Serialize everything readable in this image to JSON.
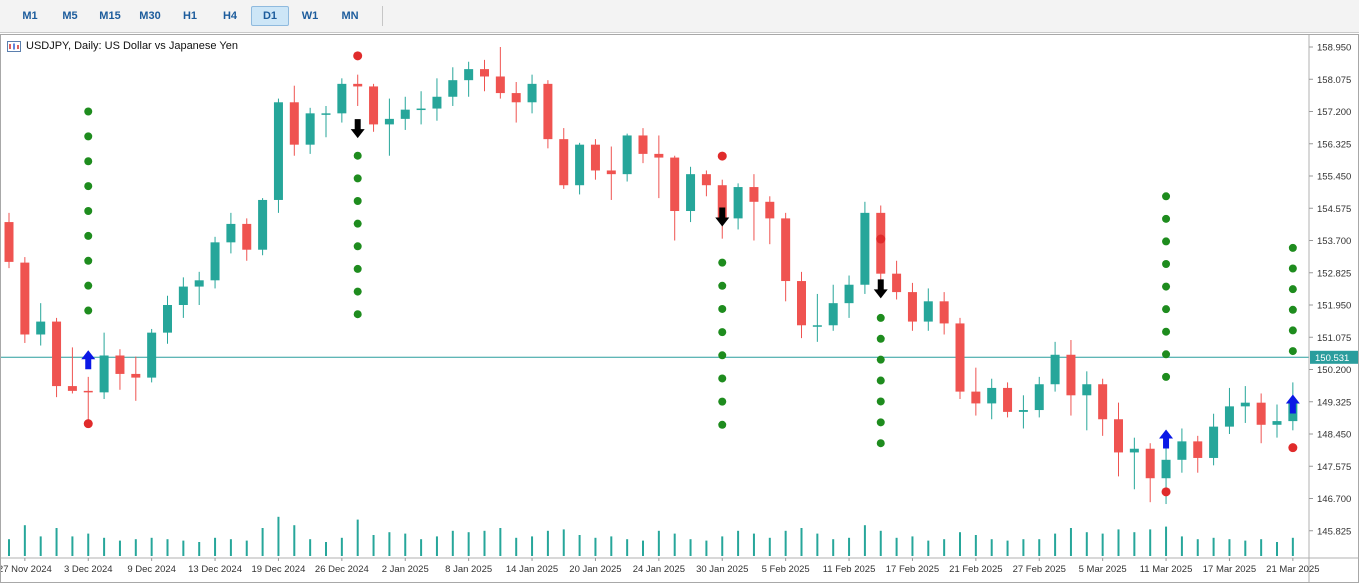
{
  "toolbar": {
    "timeframes": [
      "M1",
      "M5",
      "M15",
      "M30",
      "H1",
      "H4",
      "D1",
      "W1",
      "MN"
    ],
    "selected": "D1"
  },
  "header": {
    "title": "USDJPY, Daily:  US Dollar vs Japanese Yen"
  },
  "colors": {
    "bull": "#26a69a",
    "bear": "#ef5350",
    "volume": "#26a69a",
    "price_line": "#2a9d9d",
    "price_label_bg": "#2a9d9d",
    "green_dot": "#1e8c1e",
    "red_dot": "#e02b2b",
    "up_arrow": "#0a18e6",
    "down_arrow": "#000000",
    "toolbar_text": "#1c5c9c",
    "selected_timeframe_bg": "#cde6f7",
    "selected_timeframe_border": "#8fbade",
    "axis_text": "#333333"
  },
  "chart_data": {
    "type": "candlestick",
    "symbol": "USDJPY",
    "period": "Daily",
    "description": "US Dollar vs Japanese Yen",
    "price_line": {
      "price": 150.531,
      "label": "150.531"
    },
    "y_axis": {
      "top": 158.95,
      "step": 0.875,
      "labels": [
        "158.950",
        "158.075",
        "157.200",
        "156.325",
        "155.450",
        "154.575",
        "153.700",
        "152.825",
        "151.950",
        "151.075",
        "150.200",
        "149.325",
        "148.450",
        "147.575",
        "146.700",
        "145.825"
      ]
    },
    "x_axis": {
      "labels": [
        {
          "text": "27 Nov 2024",
          "index": 1
        },
        {
          "text": "3 Dec 2024",
          "index": 5
        },
        {
          "text": "9 Dec 2024",
          "index": 9
        },
        {
          "text": "13 Dec 2024",
          "index": 13
        },
        {
          "text": "19 Dec 2024",
          "index": 17
        },
        {
          "text": "26 Dec 2024",
          "index": 21
        },
        {
          "text": "2 Jan 2025",
          "index": 25
        },
        {
          "text": "8 Jan 2025",
          "index": 29
        },
        {
          "text": "14 Jan 2025",
          "index": 33
        },
        {
          "text": "20 Jan 2025",
          "index": 37
        },
        {
          "text": "24 Jan 2025",
          "index": 41
        },
        {
          "text": "30 Jan 2025",
          "index": 45
        },
        {
          "text": "5 Feb 2025",
          "index": 49
        },
        {
          "text": "11 Feb 2025",
          "index": 53
        },
        {
          "text": "17 Feb 2025",
          "index": 57
        },
        {
          "text": "21 Feb 2025",
          "index": 61
        },
        {
          "text": "27 Feb 2025",
          "index": 65
        },
        {
          "text": "5 Mar 2025",
          "index": 69
        },
        {
          "text": "11 Mar 2025",
          "index": 73
        },
        {
          "text": "17 Mar 2025",
          "index": 77
        },
        {
          "text": "21 Mar 2025",
          "index": 81
        }
      ]
    },
    "candles": [
      [
        154.2,
        154.45,
        152.95,
        153.12,
        12
      ],
      [
        153.1,
        153.25,
        150.92,
        151.15,
        22
      ],
      [
        151.15,
        152.0,
        150.85,
        151.5,
        14
      ],
      [
        151.5,
        151.6,
        149.45,
        149.75,
        20
      ],
      [
        149.75,
        150.8,
        149.55,
        149.62,
        14
      ],
      [
        149.62,
        150.0,
        148.65,
        149.58,
        16
      ],
      [
        149.58,
        151.2,
        149.4,
        150.58,
        13
      ],
      [
        150.58,
        150.75,
        149.65,
        150.08,
        11
      ],
      [
        150.08,
        150.55,
        149.35,
        149.98,
        12
      ],
      [
        149.98,
        151.3,
        149.85,
        151.2,
        13
      ],
      [
        151.2,
        152.2,
        150.9,
        151.95,
        12
      ],
      [
        151.95,
        152.7,
        151.6,
        152.45,
        11
      ],
      [
        152.45,
        152.85,
        151.95,
        152.62,
        10
      ],
      [
        152.62,
        153.8,
        152.4,
        153.65,
        13
      ],
      [
        153.65,
        154.45,
        153.35,
        154.15,
        12
      ],
      [
        154.15,
        154.3,
        153.15,
        153.45,
        11
      ],
      [
        153.45,
        154.85,
        153.3,
        154.8,
        20
      ],
      [
        154.8,
        157.55,
        154.45,
        157.45,
        28
      ],
      [
        157.45,
        157.9,
        156.0,
        156.3,
        22
      ],
      [
        156.3,
        157.3,
        156.05,
        157.15,
        12
      ],
      [
        157.15,
        157.35,
        156.5,
        157.15,
        10
      ],
      [
        157.15,
        158.1,
        156.9,
        157.95,
        13
      ],
      [
        157.95,
        158.2,
        157.35,
        157.88,
        26
      ],
      [
        157.88,
        157.95,
        156.65,
        156.85,
        15
      ],
      [
        156.85,
        157.55,
        156.0,
        157.0,
        17
      ],
      [
        157.0,
        157.6,
        156.7,
        157.25,
        16
      ],
      [
        157.25,
        157.75,
        156.85,
        157.28,
        12
      ],
      [
        157.28,
        158.1,
        156.95,
        157.6,
        14
      ],
      [
        157.6,
        158.4,
        157.35,
        158.05,
        18
      ],
      [
        158.05,
        158.55,
        157.6,
        158.35,
        17
      ],
      [
        158.35,
        158.6,
        157.75,
        158.15,
        18
      ],
      [
        158.15,
        158.95,
        157.55,
        157.7,
        20
      ],
      [
        157.7,
        158.0,
        156.9,
        157.45,
        13
      ],
      [
        157.45,
        158.2,
        157.15,
        157.95,
        14
      ],
      [
        157.95,
        158.05,
        156.2,
        156.45,
        18
      ],
      [
        156.45,
        156.75,
        155.1,
        155.2,
        19
      ],
      [
        155.2,
        156.35,
        154.95,
        156.3,
        15
      ],
      [
        156.3,
        156.45,
        155.35,
        155.6,
        13
      ],
      [
        155.6,
        156.25,
        154.8,
        155.5,
        14
      ],
      [
        155.5,
        156.6,
        155.3,
        156.55,
        12
      ],
      [
        156.55,
        156.75,
        155.8,
        156.05,
        11
      ],
      [
        156.05,
        156.55,
        154.85,
        155.95,
        18
      ],
      [
        155.95,
        156.0,
        153.7,
        154.5,
        16
      ],
      [
        154.5,
        155.7,
        154.2,
        155.5,
        12
      ],
      [
        155.5,
        155.6,
        154.9,
        155.2,
        11
      ],
      [
        155.2,
        155.35,
        153.75,
        154.3,
        14
      ],
      [
        154.3,
        155.25,
        154.0,
        155.15,
        18
      ],
      [
        155.15,
        155.5,
        153.7,
        154.75,
        16
      ],
      [
        154.75,
        154.9,
        153.6,
        154.3,
        13
      ],
      [
        154.3,
        154.45,
        152.05,
        152.6,
        18
      ],
      [
        152.6,
        152.85,
        151.05,
        151.4,
        20
      ],
      [
        151.4,
        152.25,
        150.95,
        151.4,
        16
      ],
      [
        151.4,
        152.5,
        151.25,
        152.0,
        12
      ],
      [
        152.0,
        152.75,
        151.6,
        152.5,
        13
      ],
      [
        152.5,
        154.75,
        152.25,
        154.45,
        22
      ],
      [
        154.45,
        154.65,
        152.55,
        152.8,
        18
      ],
      [
        152.8,
        153.15,
        152.1,
        152.3,
        13
      ],
      [
        152.3,
        152.55,
        151.25,
        151.5,
        14
      ],
      [
        151.5,
        152.4,
        151.25,
        152.05,
        11
      ],
      [
        152.05,
        152.3,
        151.15,
        151.45,
        12
      ],
      [
        151.45,
        151.6,
        149.4,
        149.6,
        17
      ],
      [
        149.6,
        150.25,
        148.95,
        149.28,
        15
      ],
      [
        149.28,
        149.95,
        148.85,
        149.7,
        12
      ],
      [
        149.7,
        149.85,
        148.9,
        149.05,
        11
      ],
      [
        149.05,
        149.5,
        148.6,
        149.1,
        12
      ],
      [
        149.1,
        150.0,
        148.9,
        149.8,
        12
      ],
      [
        149.8,
        150.95,
        149.6,
        150.6,
        16
      ],
      [
        150.6,
        151.0,
        148.95,
        149.5,
        20
      ],
      [
        149.5,
        150.15,
        148.55,
        149.8,
        17
      ],
      [
        149.8,
        149.95,
        148.4,
        148.85,
        16
      ],
      [
        148.85,
        149.3,
        147.3,
        147.95,
        19
      ],
      [
        147.95,
        148.35,
        146.95,
        148.05,
        17
      ],
      [
        148.05,
        148.2,
        146.6,
        147.25,
        19
      ],
      [
        147.25,
        148.15,
        146.55,
        147.75,
        21
      ],
      [
        147.75,
        148.6,
        147.4,
        148.25,
        14
      ],
      [
        148.25,
        148.4,
        147.4,
        147.8,
        12
      ],
      [
        147.8,
        149.0,
        147.6,
        148.65,
        13
      ],
      [
        148.65,
        149.7,
        148.45,
        149.2,
        12
      ],
      [
        149.2,
        149.75,
        148.75,
        149.3,
        11
      ],
      [
        149.3,
        149.55,
        148.2,
        148.7,
        12
      ],
      [
        148.7,
        149.25,
        148.35,
        148.8,
        10
      ],
      [
        148.8,
        149.85,
        148.55,
        149.35,
        13
      ]
    ],
    "signals": {
      "green_dot_columns": [
        {
          "index": 5,
          "from": 157.2,
          "to": 151.8,
          "count": 9
        },
        {
          "index": 22,
          "from": 156.0,
          "to": 151.7,
          "count": 8
        },
        {
          "index": 45,
          "from": 153.1,
          "to": 148.7,
          "count": 8
        },
        {
          "index": 55,
          "from": 151.6,
          "to": 148.2,
          "count": 7
        },
        {
          "index": 73,
          "from": 154.9,
          "to": 150.0,
          "count": 9
        },
        {
          "index": 81,
          "from": 153.5,
          "to": 150.7,
          "count": 6
        }
      ],
      "red_dots": [
        {
          "index": 5,
          "price": 148.73
        },
        {
          "index": 22,
          "price": 158.71
        },
        {
          "index": 45,
          "price": 155.99
        },
        {
          "index": 55,
          "price": 153.74
        },
        {
          "index": 73,
          "price": 146.88
        },
        {
          "index": 81,
          "price": 148.08
        }
      ],
      "up_arrows": [
        {
          "index": 5,
          "price": 150.45
        },
        {
          "index": 73,
          "price": 148.3
        },
        {
          "index": 81,
          "price": 149.25
        }
      ],
      "down_arrows": [
        {
          "index": 22,
          "price": 156.75
        },
        {
          "index": 45,
          "price": 154.35
        },
        {
          "index": 55,
          "price": 152.4
        }
      ]
    }
  }
}
